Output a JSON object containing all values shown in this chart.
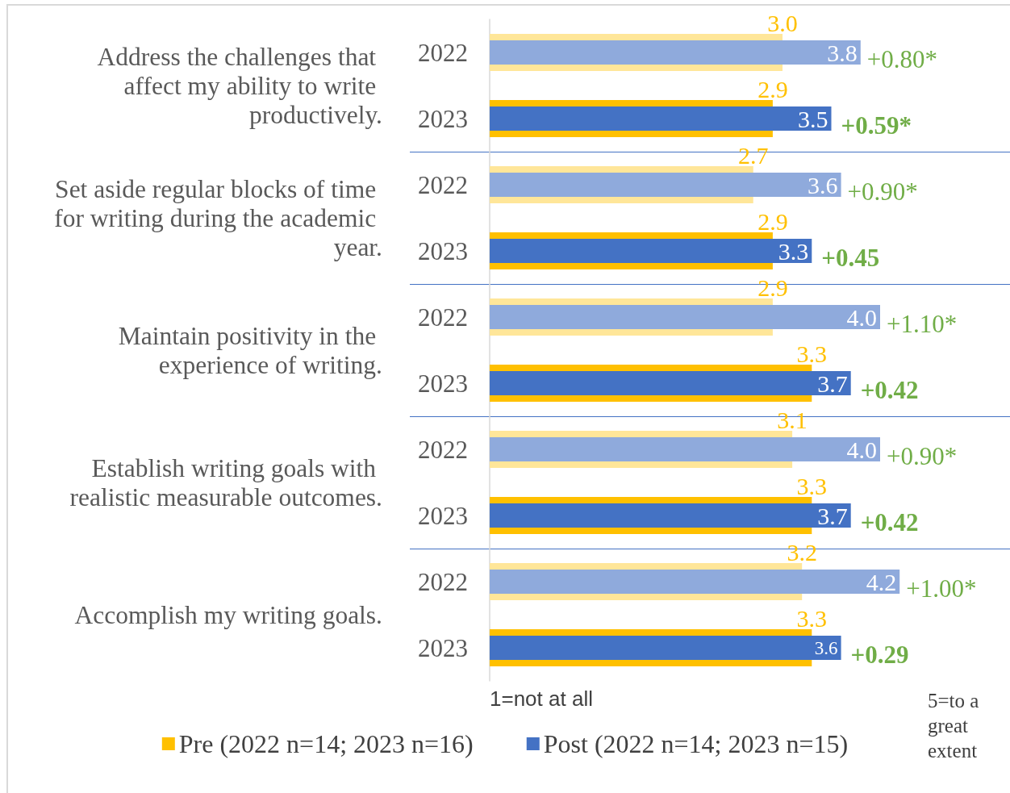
{
  "chart_data": {
    "type": "bar",
    "orientation": "horizontal",
    "categories": [
      "2022",
      "2023",
      "2022",
      "2023",
      "2022",
      "2023",
      "2022",
      "2023",
      "2022",
      "2023"
    ],
    "series": [
      {
        "name": "Pre (2022 n=14; 2023 n=16)",
        "color": "#ffc000",
        "colors": [
          "#ffe699",
          "#ffc000",
          "#ffe699",
          "#ffc000",
          "#ffe699",
          "#ffc000",
          "#ffe699",
          "#ffc000",
          "#ffe699",
          "#ffc000"
        ],
        "values": [
          3.0,
          2.9,
          2.7,
          2.9,
          2.9,
          3.3,
          3.1,
          3.3,
          3.2,
          3.3
        ],
        "value_labels": [
          "3.0",
          "2.9",
          "2.7",
          "2.9",
          "2.9",
          "3.3",
          "3.1",
          "3.3",
          "3.2",
          "3.3"
        ]
      },
      {
        "name": "Post (2022 n=14; 2023 n=15)",
        "color": "#4472c4",
        "colors": [
          "#8faadc",
          "#4472c4",
          "#8faadc",
          "#4472c4",
          "#8faadc",
          "#4472c4",
          "#8faadc",
          "#4472c4",
          "#8faadc",
          "#4472c4"
        ],
        "values": [
          3.8,
          3.5,
          3.6,
          3.3,
          4.0,
          3.7,
          4.0,
          3.7,
          4.2,
          3.6
        ],
        "value_labels": [
          "3.8",
          "3.5",
          "3.6",
          "3.3",
          "4.0",
          "3.7",
          "4.0",
          "3.7",
          "4.2",
          "3.6"
        ]
      }
    ],
    "tick_labels": "y",
    "legend": "bottom",
    "annotations": [
      "Address the challenges that affect my ability to write productively.",
      "Set aside regular blocks of time for writing during the academic year.",
      "Maintain positivity in the experience of writing.",
      "Establish writing goals with realistic measurable outcomes.",
      "Accomplish my writing goals.",
      "+0.80*",
      "+0.59*",
      "+0.90*",
      "+0.45",
      "+1.10*",
      "+0.42",
      "+0.90*",
      "+0.42",
      "+1.00*",
      "+0.29",
      "1=not at all",
      "5=to a great extent"
    ]
  }
}
